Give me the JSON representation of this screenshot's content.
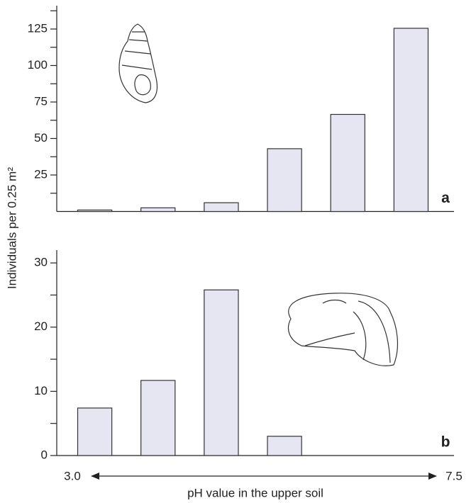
{
  "shared": {
    "ylabel": "Individuals per 0.25 m²",
    "xlabel": "pH value in the upper soil",
    "xrange": [
      {
        "value": 3,
        "label": "3.0"
      },
      {
        "value": 7.5,
        "label": "7.5"
      }
    ]
  },
  "chart_data": [
    {
      "type": "bar",
      "label": "a",
      "categories": [
        null,
        null,
        null,
        null,
        null,
        null
      ],
      "values": [
        1,
        2.5,
        6,
        43,
        66.5,
        125.5
      ],
      "color": "#e6e6f2",
      "ylim": [
        0,
        141
      ],
      "yticks": [
        25,
        50,
        75,
        100,
        125
      ],
      "yminorticks": [
        12.5,
        37.5,
        62.5,
        87.5,
        112.5,
        137.5
      ]
    },
    {
      "type": "bar",
      "label": "b",
      "categories": [
        null,
        null,
        null,
        null,
        null,
        null
      ],
      "values": [
        7.4,
        11.7,
        25.8,
        3,
        null,
        null
      ],
      "color": "#e6e6f2",
      "ylim": [
        0,
        32
      ],
      "yticks": [
        0,
        10,
        20,
        30
      ],
      "yminorticks": [
        5,
        15,
        25
      ]
    }
  ]
}
